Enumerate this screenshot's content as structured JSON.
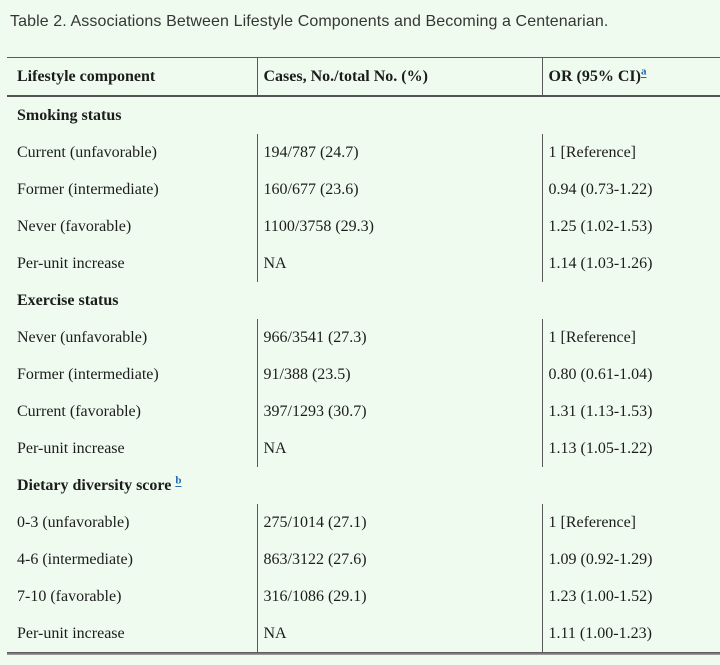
{
  "page": {
    "background_color": "#effbef",
    "link_color": "#2069ac"
  },
  "title": "Table 2. Associations Between Lifestyle Components and Becoming a Centenarian.",
  "table": {
    "columns": [
      "Lifestyle component",
      "Cases, No./total No. (%)",
      "OR (95% CI)"
    ],
    "or_footnote_marker": "a",
    "sections": [
      {
        "header": "Smoking status",
        "rows": [
          [
            "Current (unfavorable)",
            "194/787 (24.7)",
            "1 [Reference]"
          ],
          [
            "Former (intermediate)",
            "160/677 (23.6)",
            "0.94 (0.73-1.22)"
          ],
          [
            "Never (favorable)",
            "1100/3758 (29.3)",
            "1.25 (1.02-1.53)"
          ],
          [
            "Per-unit increase",
            "NA",
            "1.14 (1.03-1.26)"
          ]
        ]
      },
      {
        "header": "Exercise status",
        "rows": [
          [
            "Never (unfavorable)",
            "966/3541 (27.3)",
            "1 [Reference]"
          ],
          [
            "Former (intermediate)",
            "91/388 (23.5)",
            "0.80 (0.61-1.04)"
          ],
          [
            "Current (favorable)",
            "397/1293 (30.7)",
            "1.31 (1.13-1.53)"
          ],
          [
            "Per-unit increase",
            "NA",
            "1.13 (1.05-1.22)"
          ]
        ]
      },
      {
        "header": "Dietary diversity score",
        "footnote_marker": "b",
        "rows": [
          [
            "0-3 (unfavorable)",
            "275/1014 (27.1)",
            "1 [Reference]"
          ],
          [
            "4-6 (intermediate)",
            "863/3122 (27.6)",
            "1.09 (0.92-1.29)"
          ],
          [
            "7-10 (favorable)",
            "316/1086 (29.1)",
            "1.23 (1.00-1.52)"
          ],
          [
            "Per-unit increase",
            "NA",
            "1.11 (1.00-1.23)"
          ]
        ]
      }
    ]
  }
}
